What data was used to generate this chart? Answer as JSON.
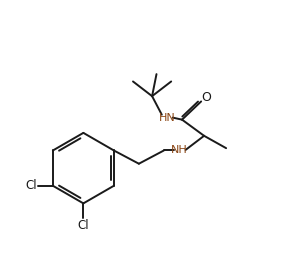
{
  "bg_color": "#ffffff",
  "line_color": "#1a1a1a",
  "nh_color": "#8B4513",
  "o_color": "#cc0000",
  "line_width": 1.4,
  "figsize": [
    2.96,
    2.54
  ],
  "dpi": 100,
  "xlim": [
    0,
    10
  ],
  "ylim": [
    0,
    8.6
  ]
}
